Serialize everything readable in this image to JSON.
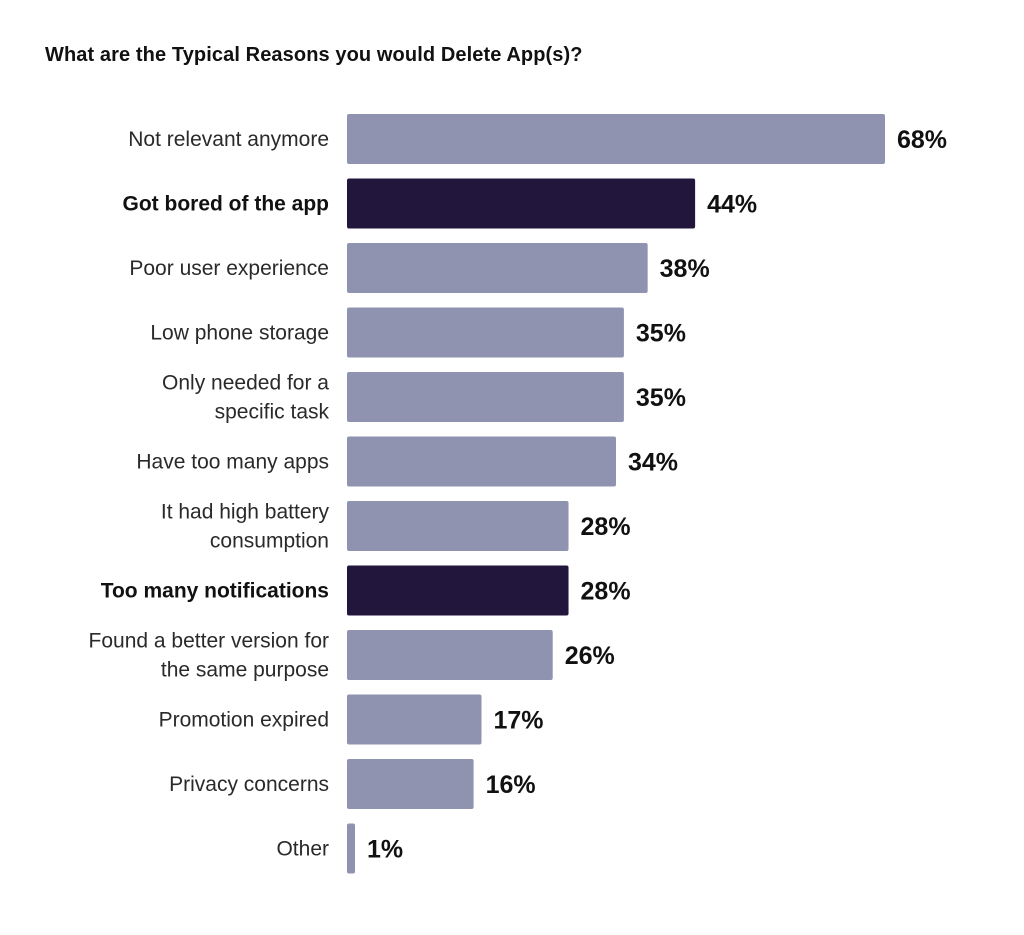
{
  "chart_data": {
    "type": "bar",
    "orientation": "horizontal",
    "title": "What are the Typical Reasons you would Delete App(s)?",
    "categories": [
      [
        "Not relevant anymore"
      ],
      [
        "Got bored of the app"
      ],
      [
        "Poor user experience"
      ],
      [
        "Low phone storage"
      ],
      [
        "Only needed for a",
        "specific task"
      ],
      [
        "Have too many apps"
      ],
      [
        "It had high battery",
        "consumption"
      ],
      [
        "Too many notifications"
      ],
      [
        "Found a better version for",
        "the same purpose"
      ],
      [
        "Promotion expired"
      ],
      [
        "Privacy concerns"
      ],
      [
        "Other"
      ]
    ],
    "values": [
      68,
      44,
      38,
      35,
      35,
      34,
      28,
      28,
      26,
      17,
      16,
      1
    ],
    "value_labels": [
      "68%",
      "44%",
      "38%",
      "35%",
      "35%",
      "34%",
      "28%",
      "28%",
      "26%",
      "17%",
      "16%",
      "1%"
    ],
    "highlighted": [
      false,
      true,
      false,
      false,
      false,
      false,
      false,
      true,
      false,
      false,
      false,
      false
    ],
    "unit": "%",
    "xlim": [
      0,
      68
    ],
    "grid": false,
    "legend": "none",
    "colors": {
      "default_bar": "#8f93b0",
      "highlight_bar": "#22163d",
      "text": "#111111"
    }
  }
}
